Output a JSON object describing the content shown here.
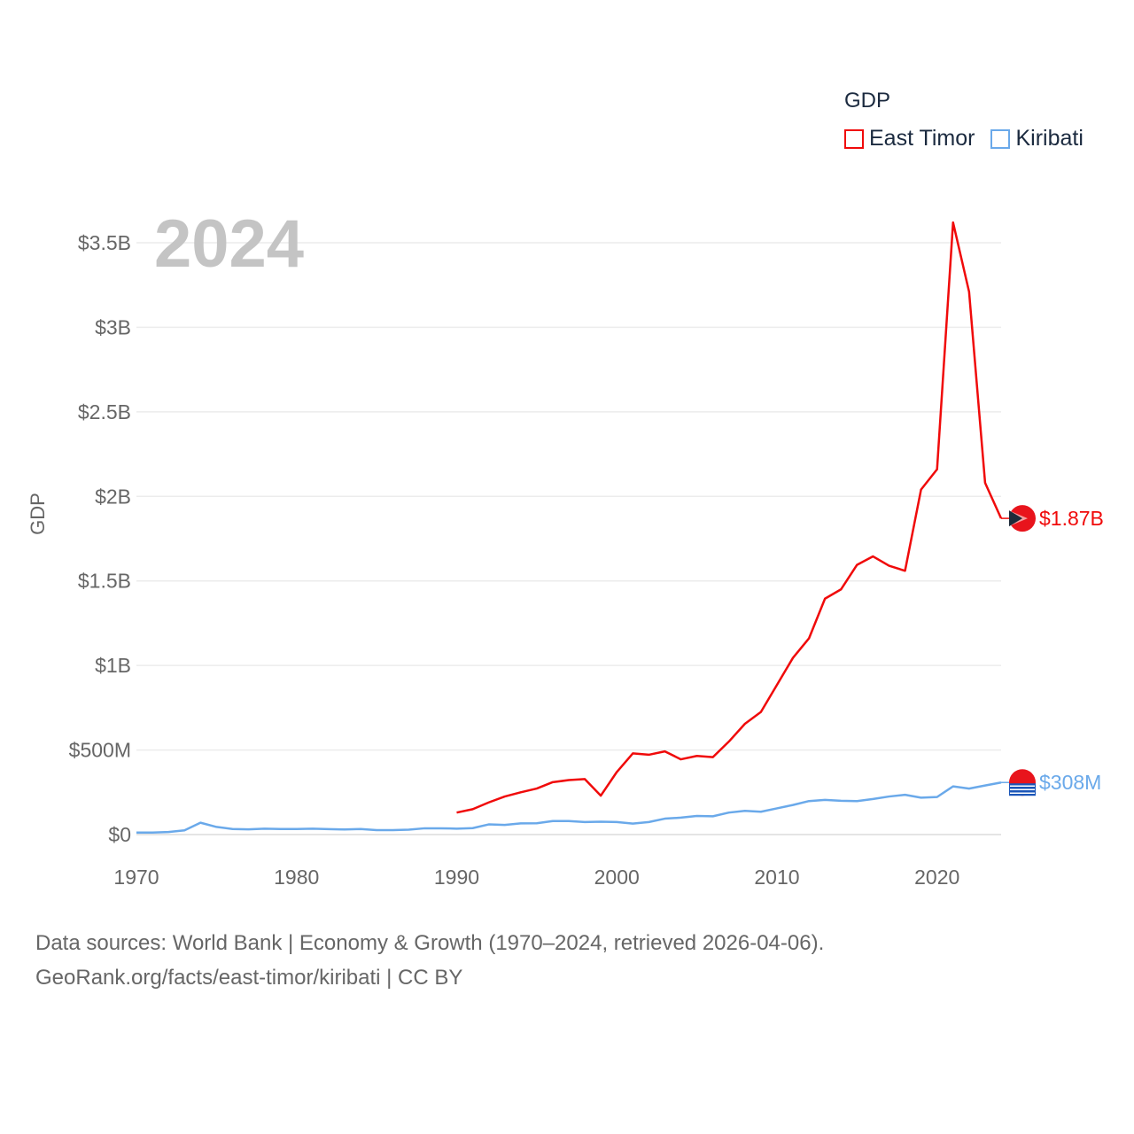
{
  "chart_data": {
    "type": "line",
    "title": "",
    "year_label": "2024",
    "xlabel": "",
    "ylabel": "GDP",
    "xlim": [
      1970,
      2024
    ],
    "ylim": [
      0,
      3500000000
    ],
    "x_ticks": [
      1970,
      1980,
      1990,
      2000,
      2010,
      2020
    ],
    "x_tick_labels": [
      "1970",
      "1980",
      "1990",
      "2000",
      "2010",
      "2020"
    ],
    "y_ticks": [
      0,
      500000000,
      1000000000,
      1500000000,
      2000000000,
      2500000000,
      3000000000,
      3500000000
    ],
    "y_tick_labels": [
      "$0",
      "$500M",
      "$1B",
      "$1.5B",
      "$2B",
      "$2.5B",
      "$3B",
      "$3.5B"
    ],
    "grid": true,
    "legend_title": "GDP",
    "legend_position": "top-right",
    "series": [
      {
        "name": "East Timor",
        "color": "#f00a0a",
        "end_label": "$1.87B",
        "x": [
          1990,
          1991,
          1992,
          1993,
          1994,
          1995,
          1996,
          1997,
          1998,
          1999,
          2000,
          2001,
          2002,
          2003,
          2004,
          2005,
          2006,
          2007,
          2008,
          2009,
          2010,
          2011,
          2012,
          2013,
          2014,
          2015,
          2016,
          2017,
          2018,
          2019,
          2020,
          2021,
          2022,
          2023,
          2024
        ],
        "values": [
          130000000,
          150000000,
          190000000,
          225000000,
          250000000,
          272000000,
          310000000,
          322000000,
          328000000,
          230000000,
          370000000,
          480000000,
          472000000,
          492000000,
          445000000,
          465000000,
          458000000,
          550000000,
          655000000,
          725000000,
          885000000,
          1045000000,
          1160000000,
          1395000000,
          1450000000,
          1595000000,
          1645000000,
          1590000000,
          1560000000,
          2040000000,
          2160000000,
          3620000000,
          3210000000,
          2080000000,
          1870000000
        ]
      },
      {
        "name": "Kiribati",
        "color": "#6aa9ea",
        "end_label": "$308M",
        "x": [
          1970,
          1971,
          1972,
          1973,
          1974,
          1975,
          1976,
          1977,
          1978,
          1979,
          1980,
          1981,
          1982,
          1983,
          1984,
          1985,
          1986,
          1987,
          1988,
          1989,
          1990,
          1991,
          1992,
          1993,
          1994,
          1995,
          1996,
          1997,
          1998,
          1999,
          2000,
          2001,
          2002,
          2003,
          2004,
          2005,
          2006,
          2007,
          2008,
          2009,
          2010,
          2011,
          2012,
          2013,
          2014,
          2015,
          2016,
          2017,
          2018,
          2019,
          2020,
          2021,
          2022,
          2023,
          2024
        ],
        "values": [
          12000000,
          12000000,
          15000000,
          25000000,
          70000000,
          45000000,
          33000000,
          31000000,
          35000000,
          33000000,
          33000000,
          35000000,
          32000000,
          30000000,
          33000000,
          26000000,
          26000000,
          29000000,
          37000000,
          37000000,
          35000000,
          38000000,
          60000000,
          57000000,
          66000000,
          67000000,
          80000000,
          80000000,
          74000000,
          76000000,
          74000000,
          65000000,
          74000000,
          94000000,
          100000000,
          110000000,
          108000000,
          130000000,
          140000000,
          135000000,
          155000000,
          175000000,
          198000000,
          205000000,
          200000000,
          198000000,
          210000000,
          225000000,
          235000000,
          218000000,
          222000000,
          285000000,
          272000000,
          290000000,
          308000000
        ]
      }
    ]
  },
  "source": {
    "line1": "Data sources: World Bank | Economy & Growth (1970–2024, retrieved 2026-04-06).",
    "line2": "GeoRank.org/facts/east-timor/kiribati | CC BY"
  }
}
